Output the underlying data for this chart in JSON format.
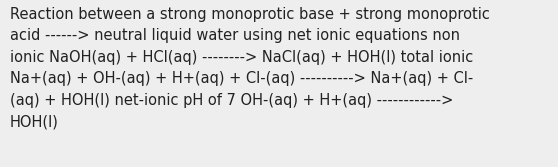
{
  "lines": [
    "Reaction between a strong monoprotic base + strong monoprotic",
    "acid ------> neutral liquid water using net ionic equations non",
    "ionic NaOH(aq) + HCl(aq) --------> NaCl(aq) + HOH(l) total ionic",
    "Na+(aq) + OH-(aq) + H+(aq) + Cl-(aq) ----------> Na+(aq) + Cl-",
    "(aq) + HOH(l) net-ionic pH of 7 OH-(aq) + H+(aq) ------------>",
    "HOH(l)"
  ],
  "background_color": "#eeeeee",
  "text_color": "#222222",
  "fontsize": 10.5,
  "fig_width": 5.58,
  "fig_height": 1.67,
  "dpi": 100,
  "linespacing": 1.55
}
